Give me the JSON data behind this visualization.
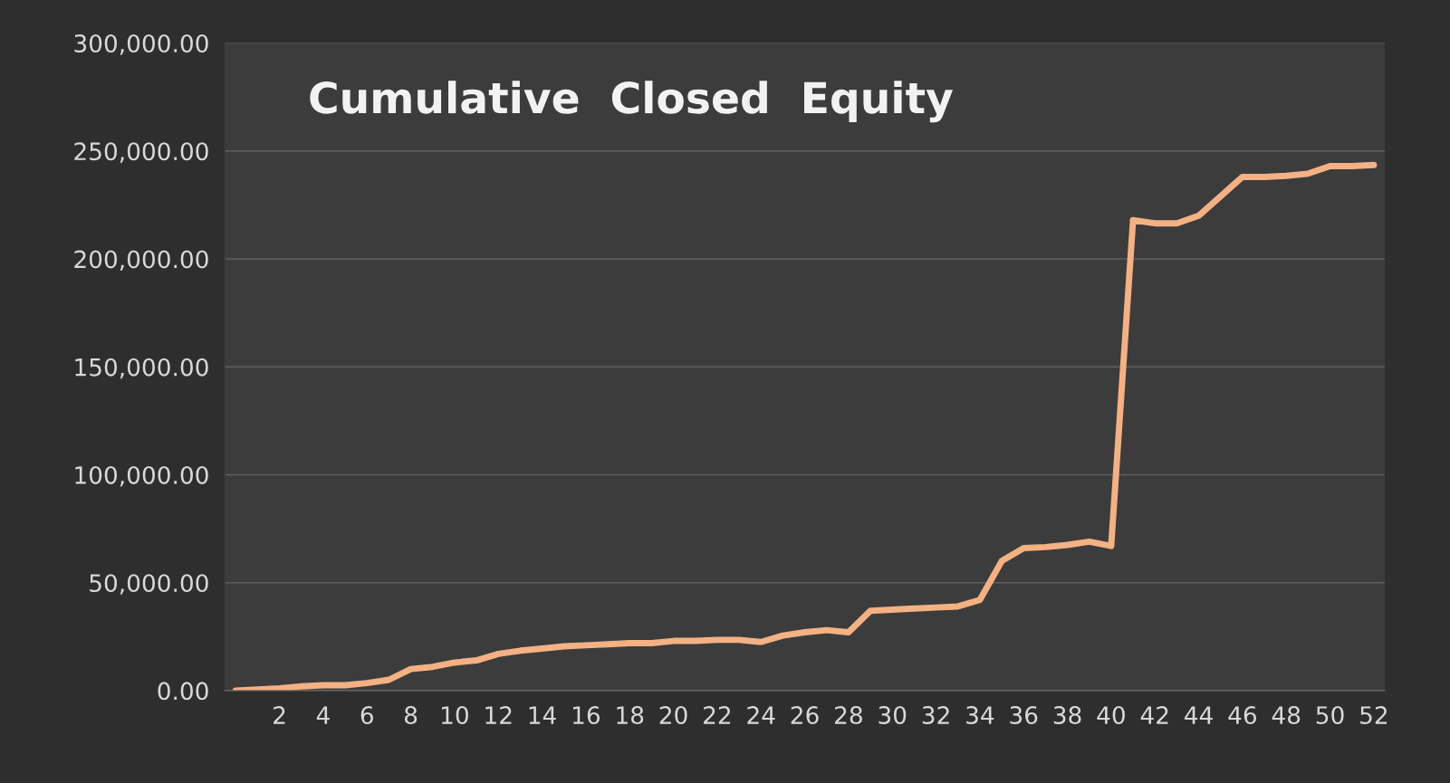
{
  "chart_data": {
    "type": "line",
    "title": "Cumulative  Closed  Equity",
    "categories": [
      null,
      null,
      "2",
      null,
      "4",
      null,
      "6",
      null,
      "8",
      null,
      "10",
      null,
      "12",
      null,
      "14",
      null,
      "16",
      null,
      "18",
      null,
      "20",
      null,
      "22",
      null,
      "24",
      null,
      "26",
      null,
      "28",
      null,
      "30",
      null,
      "32",
      null,
      "34",
      null,
      "36",
      null,
      "38",
      null,
      "40",
      null,
      "42",
      null,
      "44",
      null,
      "46",
      null,
      "48",
      null,
      "50",
      null,
      "52"
    ],
    "series": [
      {
        "color": "#f4b183",
        "values": [
          0,
          500,
          1000,
          2000,
          2500,
          2500,
          3500,
          5000,
          10000,
          11000,
          13000,
          14000,
          17000,
          18500,
          19500,
          20500,
          21000,
          21500,
          22000,
          22000,
          23000,
          23000,
          23500,
          23500,
          22500,
          25500,
          27000,
          28000,
          27000,
          37000,
          37500,
          38000,
          38500,
          39000,
          42000,
          60000,
          66000,
          66500,
          67500,
          69000,
          67000,
          218000,
          216500,
          216500,
          220000,
          229000,
          238000,
          238000,
          238500,
          239500,
          243000,
          243000,
          243500
        ]
      }
    ],
    "ylim": [
      0,
      300000
    ],
    "yticks": [
      {
        "value": 0,
        "label": "0.00"
      },
      {
        "value": 50000,
        "label": "50,000.00"
      },
      {
        "value": 100000,
        "label": "100,000.00"
      },
      {
        "value": 150000,
        "label": "150,000.00"
      },
      {
        "value": 200000,
        "label": "200,000.00"
      },
      {
        "value": 250000,
        "label": "250,000.00"
      },
      {
        "value": 300000,
        "label": "300,000.00"
      }
    ],
    "grid": "y",
    "marker": "none",
    "line_style": "solid",
    "legend": false
  }
}
